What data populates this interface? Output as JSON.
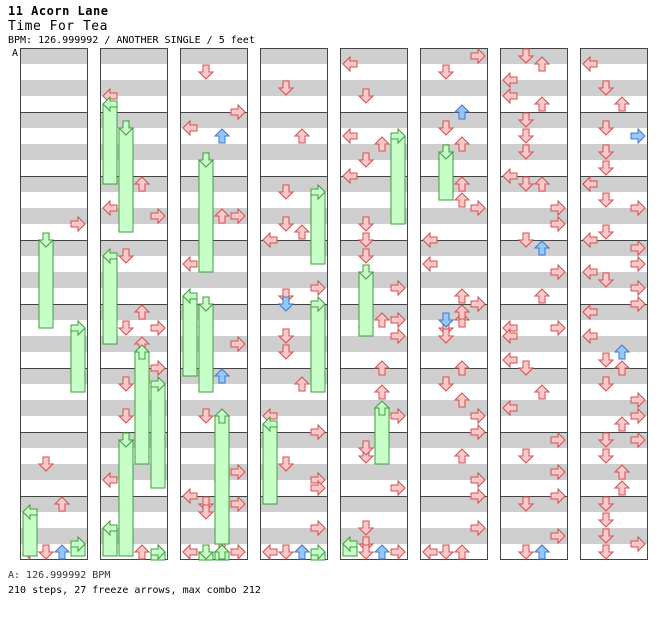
{
  "header": {
    "artist": "11 Acorn Lane",
    "title": "Time For Tea",
    "info": "BPM: 126.999992 / ANOTHER SINGLE / 5 feet",
    "section_marker": "A"
  },
  "footer": {
    "bpm_line": "A: 126.999992 BPM",
    "stats_line": "210 steps, 27 freeze arrows, max combo 212"
  },
  "colors": {
    "band": "#cfcfcf",
    "border": "#444444",
    "red_fill": "#ffc8c8",
    "red_stroke": "#d05050",
    "blue_fill": "#96c8ff",
    "blue_stroke": "#3c78c8",
    "freeze_fill": "#c8ffc8",
    "freeze_stroke": "#3c9c3c"
  },
  "chart_data": {
    "type": "step-chart",
    "columns": 8,
    "measures_per_column": 8,
    "lanes": [
      "left",
      "down",
      "up",
      "right"
    ],
    "notes": [
      [
        1,
        15,
        "right",
        "red"
      ],
      [
        3,
        13,
        "down",
        "red"
      ],
      [
        3,
        18,
        "up",
        "red"
      ],
      [
        3,
        27,
        "up",
        "blue"
      ],
      [
        3,
        29,
        "down",
        "red"
      ],
      [
        3,
        33,
        "left",
        "red"
      ],
      [
        4,
        15,
        "left",
        "red"
      ],
      [
        4,
        21,
        "left",
        "red"
      ],
      [
        4,
        26,
        "up",
        "red"
      ],
      [
        4,
        29,
        "left",
        "red"
      ],
      [
        5,
        14,
        "right",
        "red"
      ],
      [
        5,
        19,
        "down",
        "red"
      ],
      [
        5,
        26,
        "up",
        "red"
      ],
      [
        5,
        28,
        "down",
        "red"
      ],
      [
        5,
        30,
        "up",
        "red"
      ],
      [
        6,
        12,
        "right",
        "red"
      ],
      [
        6,
        17,
        "right",
        "red"
      ],
      [
        6,
        19,
        "down",
        "red"
      ],
      [
        6,
        23,
        "down",
        "red"
      ],
      [
        6,
        26,
        "up",
        "red"
      ],
      [
        6,
        31,
        "right",
        "red"
      ],
      [
        7,
        12,
        "up",
        "red"
      ],
      [
        7,
        15,
        "left",
        "red"
      ],
      [
        7,
        19,
        "down",
        "red"
      ],
      [
        7,
        23,
        "down",
        "blue"
      ],
      [
        7,
        26,
        "up",
        "red"
      ],
      [
        7,
        31,
        "right",
        "red"
      ],
      [
        8,
        12,
        "down",
        "red"
      ],
      [
        8,
        17,
        "right",
        "red"
      ],
      [
        8,
        19,
        "left",
        "red"
      ],
      [
        8,
        20,
        "up",
        "blue"
      ],
      [
        8,
        27,
        "down",
        "red"
      ],
      [
        8,
        30,
        "up",
        "red"
      ],
      [
        9,
        14,
        "right",
        "red"
      ],
      [
        9,
        20,
        "left",
        "red"
      ],
      [
        9,
        25,
        "left",
        "red"
      ],
      [
        9,
        28,
        "down",
        "red"
      ],
      [
        9,
        30,
        "right",
        "red"
      ],
      [
        9,
        33,
        "left",
        "red"
      ],
      [
        9,
        34,
        "down",
        "red"
      ],
      [
        10,
        17,
        "left",
        "red"
      ],
      [
        10,
        18,
        "up",
        "blue"
      ],
      [
        10,
        23,
        "down",
        "red"
      ],
      [
        10,
        31,
        "up",
        "red"
      ],
      [
        10,
        34,
        "right",
        "red"
      ],
      [
        11,
        14,
        "right",
        "red"
      ],
      [
        11,
        17,
        "left",
        "red"
      ],
      [
        11,
        18,
        "down",
        "red"
      ],
      [
        11,
        19,
        "down",
        "red"
      ],
      [
        11,
        21,
        "up",
        "blue"
      ],
      [
        11,
        23,
        "up",
        "red"
      ],
      [
        11,
        26,
        "left",
        "red"
      ],
      [
        11,
        26,
        "up",
        "red"
      ],
      [
        11,
        31,
        "left",
        "red"
      ],
      [
        11,
        31,
        "right",
        "red"
      ],
      [
        12,
        14,
        "down",
        "red"
      ],
      [
        12,
        20,
        "up",
        "red"
      ],
      [
        12,
        27,
        "down",
        "red"
      ],
      [
        12,
        31,
        "down",
        "red"
      ],
      [
        12,
        32,
        "up",
        "red"
      ],
      [
        12,
        33,
        "left",
        "red"
      ],
      [
        13,
        18,
        "right",
        "red"
      ],
      [
        13,
        23,
        "right",
        "red"
      ],
      [
        13,
        24,
        "down",
        "red"
      ],
      [
        13,
        25,
        "down",
        "blue"
      ],
      [
        13,
        29,
        "down",
        "red"
      ],
      [
        13,
        31,
        "right",
        "red"
      ],
      [
        14,
        13,
        "down",
        "red"
      ],
      [
        14,
        15,
        "down",
        "red"
      ],
      [
        14,
        19,
        "up",
        "red"
      ],
      [
        14,
        23,
        "left",
        "red"
      ],
      [
        14,
        25,
        "right",
        "red"
      ],
      [
        14,
        29,
        "down",
        "red"
      ],
      [
        14,
        31,
        "right",
        "red"
      ],
      [
        15,
        13,
        "left",
        "red"
      ],
      [
        15,
        16,
        "right",
        "red"
      ],
      [
        15,
        21,
        "right",
        "red"
      ],
      [
        15,
        24,
        "down",
        "red"
      ],
      [
        15,
        26,
        "left",
        "red"
      ],
      [
        15,
        27,
        "up",
        "blue"
      ],
      [
        15,
        29,
        "up",
        "red"
      ],
      [
        15,
        31,
        "left",
        "red"
      ],
      [
        15,
        34,
        "up",
        "blue"
      ],
      [
        16,
        11,
        "left",
        "red"
      ],
      [
        16,
        15,
        "down",
        "red"
      ],
      [
        16,
        20,
        "left",
        "red"
      ],
      [
        16,
        21,
        "up",
        "red"
      ],
      [
        16,
        23,
        "down",
        "red"
      ],
      [
        16,
        24,
        "right",
        "red"
      ],
      [
        16,
        25,
        "left",
        "red"
      ],
      [
        16,
        26,
        "right",
        "red"
      ],
      [
        16,
        31,
        "down",
        "red"
      ],
      [
        17,
        17,
        "down",
        "red"
      ],
      [
        17,
        19,
        "down",
        "red"
      ],
      [
        17,
        23,
        "right",
        "red"
      ],
      [
        17,
        27,
        "right",
        "red"
      ],
      [
        18,
        11,
        "up",
        "red"
      ],
      [
        18,
        12,
        "down",
        "red"
      ],
      [
        18,
        13,
        "right",
        "red"
      ],
      [
        18,
        17,
        "up",
        "red"
      ],
      [
        18,
        20,
        "up",
        "red"
      ],
      [
        18,
        23,
        "right",
        "red"
      ],
      [
        18,
        28,
        "down",
        "red"
      ],
      [
        19,
        11,
        "down",
        "red"
      ],
      [
        19,
        16,
        "right",
        "red"
      ],
      [
        19,
        21,
        "down",
        "red"
      ],
      [
        19,
        23,
        "down",
        "red"
      ],
      [
        19,
        25,
        "up",
        "blue"
      ],
      [
        19,
        26,
        "down",
        "red"
      ],
      [
        19,
        26,
        "right",
        "red"
      ],
      [
        20,
        10,
        "right",
        "red"
      ],
      [
        20,
        12,
        "down",
        "red"
      ],
      [
        20,
        17,
        "up",
        "blue"
      ],
      [
        20,
        19,
        "down",
        "red"
      ],
      [
        20,
        21,
        "up",
        "red"
      ],
      [
        20,
        23,
        "down",
        "red"
      ],
      [
        20,
        26,
        "up",
        "red"
      ],
      [
        21,
        11,
        "down",
        "red"
      ],
      [
        21,
        12,
        "up",
        "red"
      ],
      [
        21,
        13,
        "right",
        "red"
      ],
      [
        21,
        17,
        "left",
        "red"
      ],
      [
        21,
        20,
        "left",
        "red"
      ],
      [
        21,
        24,
        "up",
        "red"
      ],
      [
        21,
        25,
        "right",
        "red"
      ],
      [
        21,
        27,
        "up",
        "red"
      ],
      [
        21,
        28,
        "down",
        "red"
      ],
      [
        22,
        10,
        "up",
        "red"
      ],
      [
        22,
        11,
        "down",
        "blue"
      ],
      [
        22,
        13,
        "down",
        "red"
      ],
      [
        22,
        17,
        "up",
        "red"
      ],
      [
        22,
        19,
        "down",
        "red"
      ],
      [
        22,
        21,
        "up",
        "red"
      ],
      [
        22,
        23,
        "right",
        "red"
      ],
      [
        22,
        25,
        "right",
        "red"
      ],
      [
        23,
        12,
        "up",
        "red"
      ],
      [
        23,
        15,
        "right",
        "red"
      ],
      [
        23,
        17,
        "right",
        "red"
      ],
      [
        23,
        21,
        "right",
        "red"
      ],
      [
        23,
        24,
        "left",
        "red"
      ],
      [
        23,
        25,
        "up",
        "red"
      ],
      [
        23,
        27,
        "down",
        "red"
      ],
      [
        23,
        28,
        "left",
        "red"
      ],
      [
        24,
        10,
        "down",
        "red"
      ],
      [
        24,
        11,
        "up",
        "red"
      ],
      [
        24,
        13,
        "left",
        "red"
      ],
      [
        24,
        15,
        "left",
        "red"
      ],
      [
        24,
        16,
        "up",
        "red"
      ],
      [
        24,
        18,
        "down",
        "red"
      ],
      [
        24,
        20,
        "down",
        "red"
      ],
      [
        24,
        22,
        "down",
        "red"
      ],
      [
        24,
        25,
        "left",
        "red"
      ],
      [
        24,
        26,
        "down",
        "red"
      ],
      [
        25,
        10,
        "up",
        "red"
      ],
      [
        25,
        13,
        "right",
        "red"
      ],
      [
        25,
        15,
        "right",
        "red"
      ],
      [
        25,
        17,
        "down",
        "red"
      ],
      [
        25,
        18,
        "up",
        "blue"
      ],
      [
        25,
        21,
        "right",
        "red"
      ],
      [
        25,
        24,
        "up",
        "red"
      ],
      [
        25,
        28,
        "left",
        "red"
      ],
      [
        26,
        12,
        "right",
        "red"
      ],
      [
        26,
        13,
        "left",
        "red"
      ],
      [
        26,
        16,
        "left",
        "red"
      ],
      [
        26,
        17,
        "down",
        "red"
      ],
      [
        26,
        20,
        "up",
        "red"
      ],
      [
        26,
        22,
        "left",
        "red"
      ],
      [
        26,
        26,
        "right",
        "red"
      ],
      [
        26,
        28,
        "down",
        "red"
      ],
      [
        27,
        14,
        "right",
        "red"
      ],
      [
        27,
        17,
        "right",
        "red"
      ],
      [
        27,
        18,
        "down",
        "red"
      ],
      [
        27,
        22,
        "right",
        "red"
      ],
      [
        27,
        24,
        "up",
        "red"
      ],
      [
        27,
        27,
        "up",
        "blue"
      ],
      [
        27,
        28,
        "down",
        "red"
      ],
      [
        28,
        11,
        "left",
        "red"
      ],
      [
        28,
        14,
        "down",
        "red"
      ],
      [
        28,
        16,
        "up",
        "red"
      ],
      [
        28,
        19,
        "down",
        "red"
      ],
      [
        28,
        20,
        "right",
        "blue"
      ],
      [
        28,
        22,
        "down",
        "red"
      ],
      [
        28,
        24,
        "down",
        "red"
      ],
      [
        28,
        26,
        "left",
        "red"
      ],
      [
        29,
        10,
        "left",
        "red"
      ],
      [
        29,
        12,
        "down",
        "red"
      ],
      [
        29,
        13,
        "right",
        "red"
      ],
      [
        29,
        16,
        "down",
        "red"
      ],
      [
        29,
        17,
        "left",
        "red"
      ],
      [
        29,
        18,
        "right",
        "red"
      ],
      [
        29,
        20,
        "right",
        "red"
      ],
      [
        29,
        21,
        "left",
        "red"
      ],
      [
        29,
        22,
        "down",
        "red"
      ],
      [
        29,
        23,
        "right",
        "red"
      ],
      [
        29,
        25,
        "right",
        "red"
      ],
      [
        30,
        10,
        "left",
        "red"
      ],
      [
        30,
        13,
        "left",
        "red"
      ],
      [
        30,
        15,
        "up",
        "blue"
      ],
      [
        30,
        16,
        "down",
        "red"
      ],
      [
        30,
        17,
        "up",
        "red"
      ],
      [
        30,
        19,
        "down",
        "red"
      ],
      [
        30,
        21,
        "right",
        "red"
      ],
      [
        30,
        23,
        "right",
        "red"
      ],
      [
        30,
        24,
        "up",
        "red"
      ],
      [
        30,
        26,
        "right",
        "red"
      ],
      [
        31,
        10,
        "down",
        "red"
      ],
      [
        31,
        12,
        "down",
        "red"
      ],
      [
        31,
        14,
        "up",
        "red"
      ],
      [
        31,
        16,
        "up",
        "red"
      ],
      [
        31,
        18,
        "down",
        "red"
      ],
      [
        31,
        20,
        "down",
        "red"
      ],
      [
        31,
        22,
        "down",
        "red"
      ],
      [
        31,
        23,
        "right",
        "red"
      ],
      [
        31,
        25,
        "down",
        "red"
      ]
    ],
    "freezes": [
      [
        1,
        17,
        "down",
        22
      ],
      [
        2,
        12,
        "right",
        16
      ],
      [
        3,
        19,
        "left",
        28
      ],
      [
        3,
        23,
        "right",
        26
      ],
      [
        4,
        16,
        "left",
        20
      ],
      [
        4,
        19,
        "down",
        26
      ],
      [
        5,
        19,
        "left",
        22
      ],
      [
        5,
        31,
        "up",
        28
      ],
      [
        6,
        19,
        "right",
        26
      ],
      [
        6,
        26,
        "down",
        30
      ],
      [
        7,
        21,
        "left",
        24
      ],
      [
        7,
        28,
        "right",
        20
      ],
      [
        8,
        23,
        "down",
        28
      ],
      [
        9,
        24,
        "left",
        20
      ],
      [
        9,
        25,
        "down",
        22
      ],
      [
        10,
        23,
        "up",
        32
      ],
      [
        11,
        24,
        "down",
        24
      ],
      [
        11,
        26,
        "up",
        20
      ],
      [
        12,
        27,
        "right",
        18
      ],
      [
        13,
        25,
        "right",
        22
      ],
      [
        14,
        24,
        "left",
        20
      ],
      [
        15,
        27,
        "right",
        24
      ],
      [
        16,
        20,
        "right",
        22
      ],
      [
        17,
        21,
        "down",
        16
      ],
      [
        18,
        22,
        "up",
        14
      ],
      [
        19,
        23,
        "left",
        12
      ],
      [
        20,
        22,
        "down",
        12
      ]
    ]
  }
}
